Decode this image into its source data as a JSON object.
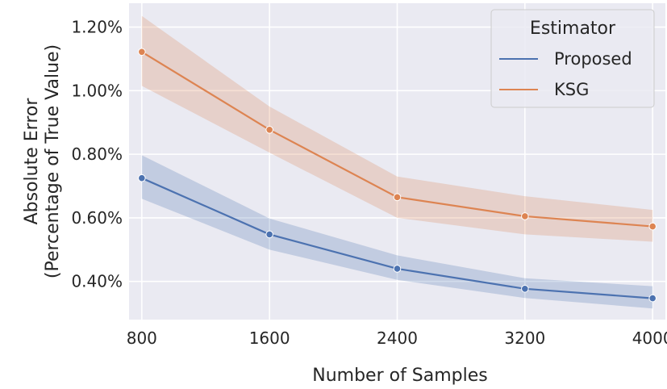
{
  "chart_data": {
    "type": "line",
    "xlabel": "Number of Samples",
    "ylabel_lines": [
      "Absolute Error",
      "(Percentage of True Value)"
    ],
    "x": [
      800,
      1600,
      2400,
      3200,
      4000
    ],
    "x_ticks": [
      "800",
      "1600",
      "2400",
      "3200",
      "4000"
    ],
    "y_ticks": [
      0.4,
      0.6,
      0.8,
      1.0,
      1.2
    ],
    "y_tick_labels": [
      "0.40%",
      "0.60%",
      "0.80%",
      "1.00%",
      "1.20%"
    ],
    "xlim": [
      720,
      4080
    ],
    "ylim": [
      0.28,
      1.275
    ],
    "grid": true,
    "background": "#eaeaf2",
    "legend": {
      "title": "Estimator",
      "placement": "top-right"
    },
    "series": [
      {
        "name": "Proposed",
        "color": "#4c72b0",
        "values": [
          0.725,
          0.548,
          0.44,
          0.377,
          0.347
        ],
        "ci_low": [
          0.66,
          0.5,
          0.405,
          0.348,
          0.315
        ],
        "ci_high": [
          0.797,
          0.598,
          0.482,
          0.41,
          0.385
        ]
      },
      {
        "name": "KSG",
        "color": "#dd8452",
        "values": [
          1.122,
          0.877,
          0.665,
          0.605,
          0.573
        ],
        "ci_low": [
          1.015,
          0.805,
          0.6,
          0.548,
          0.525
        ],
        "ci_high": [
          1.235,
          0.95,
          0.73,
          0.668,
          0.625
        ]
      }
    ]
  }
}
